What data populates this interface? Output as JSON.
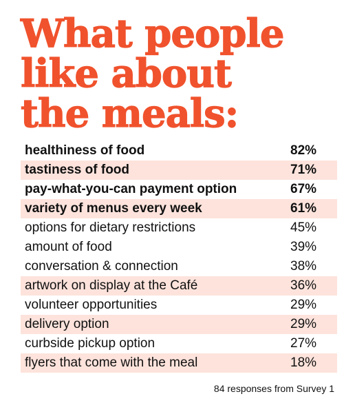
{
  "title": {
    "line1": "What people",
    "line2": "like about",
    "line3": "the meals:"
  },
  "colors": {
    "title": "#f0522d",
    "row_shade": "#fde3dc",
    "text": "#111111"
  },
  "chart_data": {
    "type": "table",
    "title": "What people like about the meals:",
    "rows": [
      {
        "label": "healthiness of food",
        "value": "82%",
        "bold": true
      },
      {
        "label": "tastiness of food",
        "value": "71%",
        "bold": true
      },
      {
        "label": "pay-what-you-can payment option",
        "value": "67%",
        "bold": true
      },
      {
        "label": "variety of menus every week",
        "value": "61%",
        "bold": true
      },
      {
        "label": "options for dietary restrictions",
        "value": "45%",
        "bold": false
      },
      {
        "label": "amount of food",
        "value": "39%",
        "bold": false
      },
      {
        "label": "conversation & connection",
        "value": "38%",
        "bold": false
      },
      {
        "label": "artwork on display at the Café",
        "value": "36%",
        "bold": false
      },
      {
        "label": "volunteer opportunities",
        "value": "29%",
        "bold": false
      },
      {
        "label": "delivery option",
        "value": "29%",
        "bold": false
      },
      {
        "label": "curbside pickup option",
        "value": "27%",
        "bold": false
      },
      {
        "label": "flyers that come with the meal",
        "value": "18%",
        "bold": false
      }
    ],
    "shaded_rows": [
      false,
      true,
      false,
      true,
      false,
      false,
      false,
      true,
      false,
      true,
      false,
      true
    ]
  },
  "footer": "84 responses from Survey 1"
}
